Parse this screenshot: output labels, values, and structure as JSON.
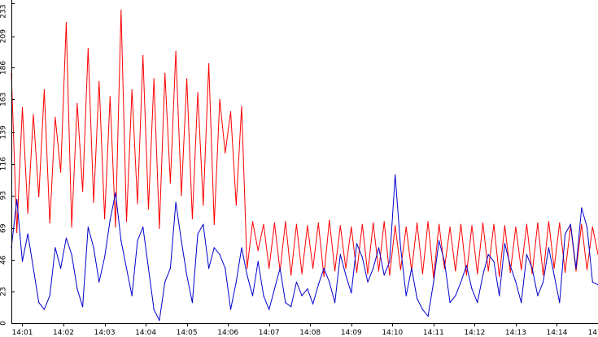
{
  "chart_data": {
    "type": "line",
    "title": "",
    "xlabel": "",
    "ylabel": "",
    "ylim": [
      0,
      233
    ],
    "xlim": [
      "14:00:44",
      "14:15:00"
    ],
    "y_ticks": [
      "0",
      "23",
      "46",
      "69",
      "93",
      "116",
      "139",
      "163",
      "186",
      "209",
      "233"
    ],
    "x_ticks": [
      "14:01",
      "14:02",
      "14:03",
      "14:04",
      "14:05",
      "14:06",
      "14:07",
      "14:08",
      "14:09",
      "14:10",
      "14:11",
      "14:12",
      "14:13",
      "14:14",
      "14"
    ],
    "grid": false,
    "legend": "none",
    "background": "#ffffff",
    "series": [
      {
        "color": "#ff0000",
        "x": [
          "14:00:44",
          "14:00:52",
          "14:01:00",
          "14:01:08",
          "14:01:16",
          "14:01:24",
          "14:01:32",
          "14:01:40",
          "14:01:48",
          "14:01:56",
          "14:02:04",
          "14:02:12",
          "14:02:20",
          "14:02:28",
          "14:02:36",
          "14:02:44",
          "14:02:52",
          "14:03:00",
          "14:03:08",
          "14:03:16",
          "14:03:24",
          "14:03:32",
          "14:03:40",
          "14:03:48",
          "14:03:56",
          "14:04:04",
          "14:04:12",
          "14:04:20",
          "14:04:28",
          "14:04:36",
          "14:04:44",
          "14:04:52",
          "14:05:00",
          "14:05:08",
          "14:05:16",
          "14:05:24",
          "14:05:32",
          "14:05:40",
          "14:05:48",
          "14:05:56",
          "14:06:04",
          "14:06:12",
          "14:06:20",
          "14:06:28",
          "14:06:36",
          "14:06:44",
          "14:06:52",
          "14:07:00",
          "14:07:08",
          "14:07:16",
          "14:07:24",
          "14:07:32",
          "14:07:40",
          "14:07:48",
          "14:07:56",
          "14:08:04",
          "14:08:12",
          "14:08:20",
          "14:08:28",
          "14:08:36",
          "14:08:44",
          "14:08:52",
          "14:09:00",
          "14:09:08",
          "14:09:16",
          "14:09:24",
          "14:09:32",
          "14:09:40",
          "14:09:48",
          "14:09:56",
          "14:10:04",
          "14:10:12",
          "14:10:20",
          "14:10:28",
          "14:10:36",
          "14:10:44",
          "14:10:52",
          "14:11:00",
          "14:11:08",
          "14:11:16",
          "14:11:24",
          "14:11:32",
          "14:11:40",
          "14:11:48",
          "14:11:56",
          "14:12:04",
          "14:12:12",
          "14:12:20",
          "14:12:28",
          "14:12:36",
          "14:12:44",
          "14:12:52",
          "14:13:00",
          "14:13:08",
          "14:13:16",
          "14:13:24",
          "14:13:32",
          "14:13:40",
          "14:13:48",
          "14:13:56",
          "14:14:04",
          "14:14:12",
          "14:14:20",
          "14:14:28",
          "14:14:36",
          "14:14:44",
          "14:14:52",
          "14:15:00"
        ],
        "values": [
          182,
          66,
          157,
          80,
          152,
          92,
          170,
          73,
          150,
          110,
          219,
          70,
          160,
          96,
          200,
          88,
          176,
          76,
          165,
          70,
          228,
          74,
          170,
          87,
          195,
          83,
          178,
          69,
          182,
          102,
          198,
          93,
          178,
          76,
          168,
          86,
          189,
          72,
          163,
          124,
          154,
          86,
          158,
          40,
          74,
          53,
          72,
          40,
          73,
          38,
          74,
          35,
          72,
          36,
          71,
          40,
          73,
          34,
          75,
          38,
          71,
          40,
          70,
          37,
          72,
          36,
          73,
          38,
          74,
          35,
          71,
          39,
          70,
          38,
          73,
          36,
          74,
          33,
          72,
          40,
          70,
          38,
          72,
          35,
          71,
          36,
          73,
          38,
          72,
          34,
          71,
          37,
          70,
          39,
          72,
          36,
          73,
          35,
          74,
          40,
          73,
          37,
          71,
          38,
          72,
          39,
          70,
          50
        ]
      },
      {
        "color": "#0000cc",
        "x": [
          "14:00:44",
          "14:00:52",
          "14:01:00",
          "14:01:08",
          "14:01:16",
          "14:01:24",
          "14:01:32",
          "14:01:40",
          "14:01:48",
          "14:01:56",
          "14:02:04",
          "14:02:12",
          "14:02:20",
          "14:02:28",
          "14:02:36",
          "14:02:44",
          "14:02:52",
          "14:03:00",
          "14:03:08",
          "14:03:16",
          "14:03:24",
          "14:03:32",
          "14:03:40",
          "14:03:48",
          "14:03:56",
          "14:04:04",
          "14:04:12",
          "14:04:20",
          "14:04:28",
          "14:04:36",
          "14:04:44",
          "14:04:52",
          "14:05:00",
          "14:05:08",
          "14:05:16",
          "14:05:24",
          "14:05:32",
          "14:05:40",
          "14:05:48",
          "14:05:56",
          "14:06:04",
          "14:06:12",
          "14:06:20",
          "14:06:28",
          "14:06:36",
          "14:06:44",
          "14:06:52",
          "14:07:00",
          "14:07:08",
          "14:07:16",
          "14:07:24",
          "14:07:32",
          "14:07:40",
          "14:07:48",
          "14:07:56",
          "14:08:04",
          "14:08:12",
          "14:08:20",
          "14:08:28",
          "14:08:36",
          "14:08:44",
          "14:08:52",
          "14:09:00",
          "14:09:08",
          "14:09:16",
          "14:09:24",
          "14:09:32",
          "14:09:40",
          "14:09:48",
          "14:09:56",
          "14:10:04",
          "14:10:12",
          "14:10:20",
          "14:10:28",
          "14:10:36",
          "14:10:44",
          "14:10:52",
          "14:11:00",
          "14:11:08",
          "14:11:16",
          "14:11:24",
          "14:11:32",
          "14:11:40",
          "14:11:48",
          "14:11:56",
          "14:12:04",
          "14:12:12",
          "14:12:20",
          "14:12:28",
          "14:12:36",
          "14:12:44",
          "14:12:52",
          "14:13:00",
          "14:13:08",
          "14:13:16",
          "14:13:24",
          "14:13:32",
          "14:13:40",
          "14:13:48",
          "14:13:56",
          "14:14:04",
          "14:14:12",
          "14:14:20",
          "14:14:28",
          "14:14:36",
          "14:14:44",
          "14:14:52",
          "14:15:00"
        ],
        "values": [
          55,
          90,
          45,
          65,
          40,
          15,
          10,
          20,
          55,
          40,
          62,
          50,
          25,
          12,
          70,
          55,
          30,
          48,
          75,
          95,
          60,
          40,
          20,
          60,
          70,
          40,
          10,
          2,
          30,
          40,
          88,
          60,
          35,
          15,
          65,
          72,
          40,
          55,
          50,
          40,
          10,
          30,
          55,
          35,
          20,
          45,
          20,
          10,
          25,
          40,
          15,
          12,
          30,
          20,
          25,
          14,
          28,
          40,
          30,
          15,
          50,
          35,
          22,
          58,
          48,
          30,
          40,
          55,
          35,
          45,
          108,
          55,
          20,
          40,
          18,
          10,
          5,
          30,
          60,
          45,
          15,
          20,
          30,
          42,
          25,
          15,
          35,
          50,
          45,
          20,
          58,
          42,
          30,
          15,
          50,
          40,
          20,
          30,
          55,
          35,
          15,
          65,
          72,
          40,
          84,
          70,
          30,
          28
        ]
      }
    ]
  }
}
